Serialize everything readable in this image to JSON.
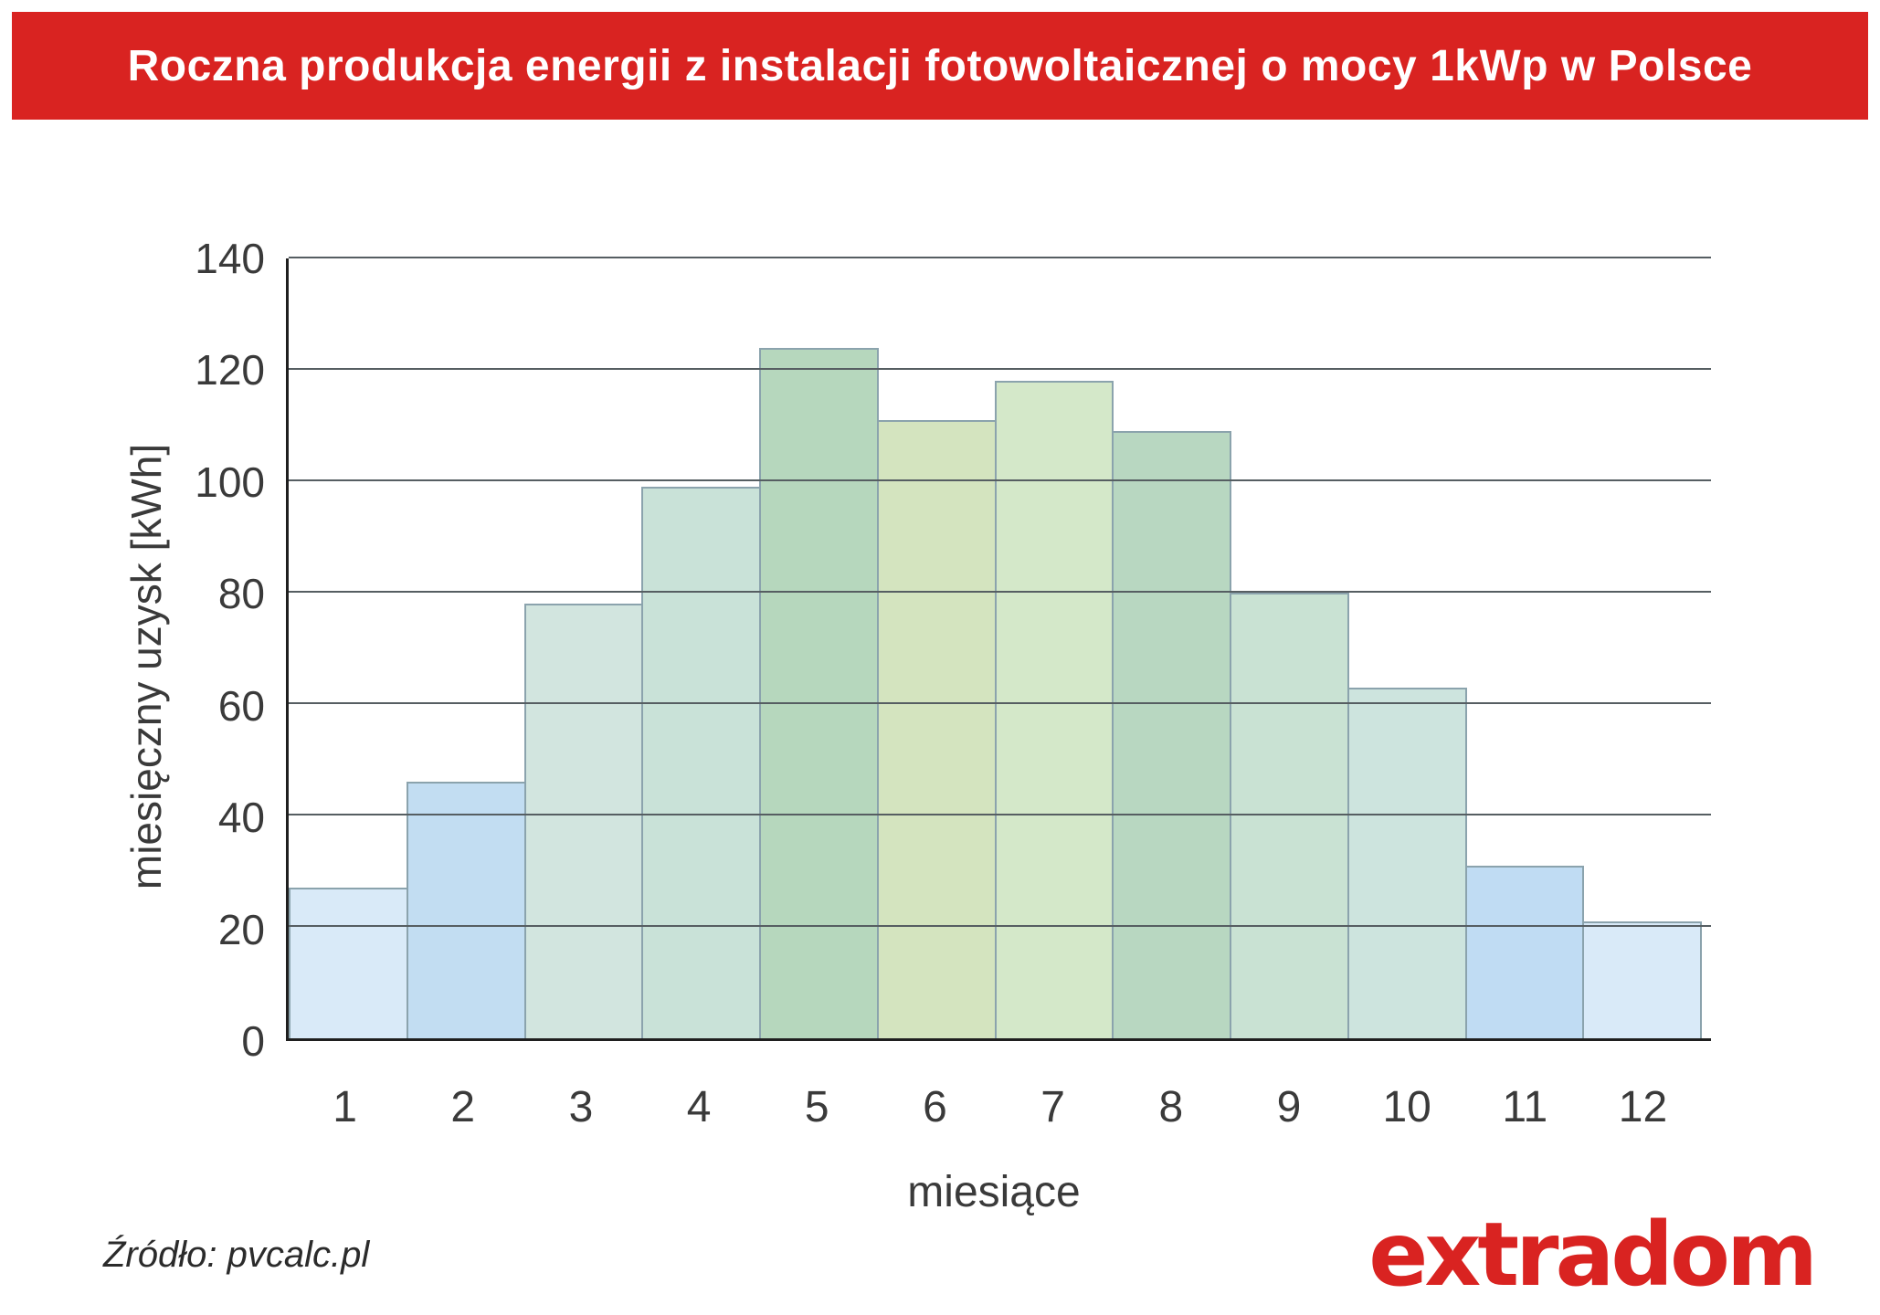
{
  "header": {
    "title": "Roczna produkcja energii z instalacji fotowoltaicznej o mocy 1kWp w Polsce",
    "background_color": "#d92321",
    "text_color": "#ffffff"
  },
  "chart_data": {
    "type": "bar",
    "categories": [
      "1",
      "2",
      "3",
      "4",
      "5",
      "6",
      "7",
      "8",
      "9",
      "10",
      "11",
      "12"
    ],
    "values": [
      27,
      46,
      78,
      99,
      124,
      111,
      118,
      109,
      80,
      63,
      31,
      21
    ],
    "bar_colors": [
      "#d9eaf8",
      "#c2ddf2",
      "#d2e5df",
      "#c9e2d8",
      "#b6d7bd",
      "#d4e4bf",
      "#d4e8c9",
      "#b8d7c1",
      "#c9e2d3",
      "#cde4de",
      "#c0dcf3",
      "#d9eaf8"
    ],
    "bar_border_color": "#8ba3ad",
    "gridline_color": "#565e62",
    "title": "Roczna produkcja energii z instalacji fotowoltaicznej o mocy 1kWp w Polsce",
    "xlabel": "miesiące",
    "ylabel": "miesięczny uzysk [kWh]",
    "ylim": [
      0,
      140
    ],
    "yticks": [
      0,
      20,
      40,
      60,
      80,
      100,
      120,
      140
    ],
    "grid": true,
    "legend": false
  },
  "footer": {
    "source": "Źródło: pvcalc.pl",
    "logo": "extradom",
    "logo_color": "#d92321"
  }
}
